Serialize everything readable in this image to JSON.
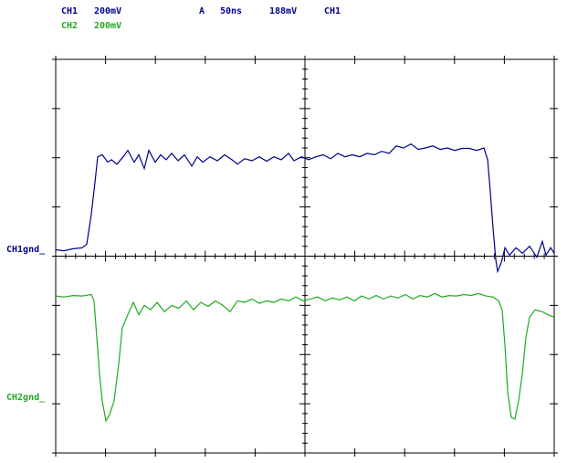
{
  "chart_data": {
    "type": "line",
    "header": {
      "ch1_scale": "200mV",
      "trigger": "A",
      "timebase": "50ns",
      "trigger_level": "188mV",
      "trigger_source": "CH1",
      "ch2_scale": "200mV"
    },
    "ground_labels": [
      "CH1gnd_",
      "CH2gnd_"
    ],
    "xlim": [
      0,
      500
    ],
    "ylim": [
      -4,
      4
    ],
    "xticks": [
      0,
      50,
      100,
      150,
      200,
      250,
      300,
      350,
      400,
      450,
      500
    ],
    "yticks": [
      -4,
      -3,
      -2,
      -1,
      0,
      1,
      2,
      3,
      4
    ],
    "series": [
      {
        "name": "CH1",
        "color": "#00008b",
        "x": [
          0,
          8.2,
          17.4,
          26.6,
          31.1,
          35.7,
          39.4,
          42.1,
          46.7,
          52.2,
          55.9,
          61.4,
          67.8,
          72.3,
          78.8,
          83.3,
          88.8,
          93.4,
          99.8,
          105.3,
          110.8,
          116.3,
          122.7,
          129.1,
          136.5,
          141.9,
          147.4,
          154.8,
          162.1,
          169.4,
          176.7,
          182.2,
          189.6,
          196.9,
          204.2,
          211.5,
          218.9,
          226.2,
          233.5,
          239.0,
          246.4,
          253.7,
          261.0,
          268.3,
          275.7,
          283.0,
          290.3,
          297.6,
          305.0,
          312.3,
          319.6,
          326.9,
          334.3,
          341.6,
          348.9,
          356.2,
          363.6,
          370.9,
          378.2,
          385.6,
          392.9,
          400.2,
          407.5,
          414.9,
          422.2,
          429.5,
          433.2,
          435.9,
          438.6,
          441.4,
          443.2,
          446.9,
          450.6,
          455.2,
          461.6,
          468.0,
          475.3,
          482.6,
          488.1,
          491.8,
          496.4,
          500
        ],
        "values": [
          0.13,
          0.11,
          0.15,
          0.17,
          0.24,
          0.85,
          1.5,
          2.02,
          2.06,
          1.91,
          1.96,
          1.87,
          2.02,
          2.15,
          1.91,
          2.06,
          1.78,
          2.15,
          1.91,
          2.06,
          1.96,
          2.09,
          1.94,
          2.06,
          1.83,
          2.02,
          1.91,
          2.02,
          1.94,
          2.06,
          1.96,
          1.87,
          1.98,
          1.94,
          2.02,
          1.93,
          2.02,
          1.96,
          2.09,
          1.94,
          2.02,
          1.96,
          2.02,
          2.06,
          1.98,
          2.09,
          2.02,
          2.06,
          2.02,
          2.09,
          2.06,
          2.13,
          2.09,
          2.24,
          2.2,
          2.28,
          2.17,
          2.2,
          2.24,
          2.17,
          2.2,
          2.15,
          2.19,
          2.19,
          2.15,
          2.2,
          1.96,
          1.31,
          0.57,
          -0.07,
          -0.31,
          -0.13,
          0.17,
          0.02,
          0.17,
          0.06,
          0.2,
          -0.02,
          0.3,
          0.02,
          0.17,
          0.06
        ]
      },
      {
        "name": "CH2",
        "color": "#1faa1f",
        "x": [
          0,
          8.2,
          17.4,
          26.6,
          35.7,
          38.5,
          41.2,
          44.0,
          46.7,
          50.4,
          54.0,
          58.6,
          63.2,
          66.8,
          72.3,
          77.8,
          83.3,
          88.8,
          95.2,
          101.7,
          109.0,
          116.3,
          123.6,
          131.0,
          138.3,
          145.6,
          152.9,
          160.3,
          167.6,
          174.9,
          182.2,
          189.6,
          196.9,
          204.2,
          211.5,
          218.9,
          226.2,
          233.5,
          240.9,
          248.2,
          255.5,
          262.8,
          270.2,
          277.5,
          284.8,
          292.1,
          299.5,
          306.8,
          314.1,
          321.4,
          328.8,
          336.1,
          343.4,
          350.8,
          358.1,
          365.4,
          372.7,
          380.1,
          387.4,
          394.7,
          402.0,
          409.4,
          416.7,
          424.0,
          431.3,
          438.7,
          444.2,
          447.8,
          450.6,
          453.3,
          457.0,
          460.6,
          464.3,
          468.0,
          471.6,
          475.3,
          480.8,
          488.1,
          493.6,
          500
        ],
        "values": [
          -0.81,
          -0.83,
          -0.8,
          -0.81,
          -0.78,
          -0.91,
          -1.65,
          -2.39,
          -2.94,
          -3.35,
          -3.22,
          -2.94,
          -2.2,
          -1.46,
          -1.19,
          -0.94,
          -1.19,
          -1.0,
          -1.09,
          -0.94,
          -1.13,
          -1.0,
          -1.06,
          -0.91,
          -1.09,
          -0.94,
          -1.02,
          -0.91,
          -1.0,
          -1.13,
          -0.91,
          -0.94,
          -0.87,
          -0.96,
          -0.91,
          -0.94,
          -0.87,
          -0.91,
          -0.83,
          -0.91,
          -0.87,
          -0.83,
          -0.91,
          -0.85,
          -0.89,
          -0.83,
          -0.91,
          -0.81,
          -0.87,
          -0.8,
          -0.87,
          -0.81,
          -0.85,
          -0.78,
          -0.87,
          -0.8,
          -0.83,
          -0.76,
          -0.83,
          -0.8,
          -0.81,
          -0.78,
          -0.8,
          -0.76,
          -0.81,
          -0.83,
          -0.91,
          -1.09,
          -1.83,
          -2.76,
          -3.28,
          -3.31,
          -2.94,
          -2.39,
          -1.65,
          -1.24,
          -1.09,
          -1.13,
          -1.19,
          -1.24
        ]
      }
    ]
  }
}
